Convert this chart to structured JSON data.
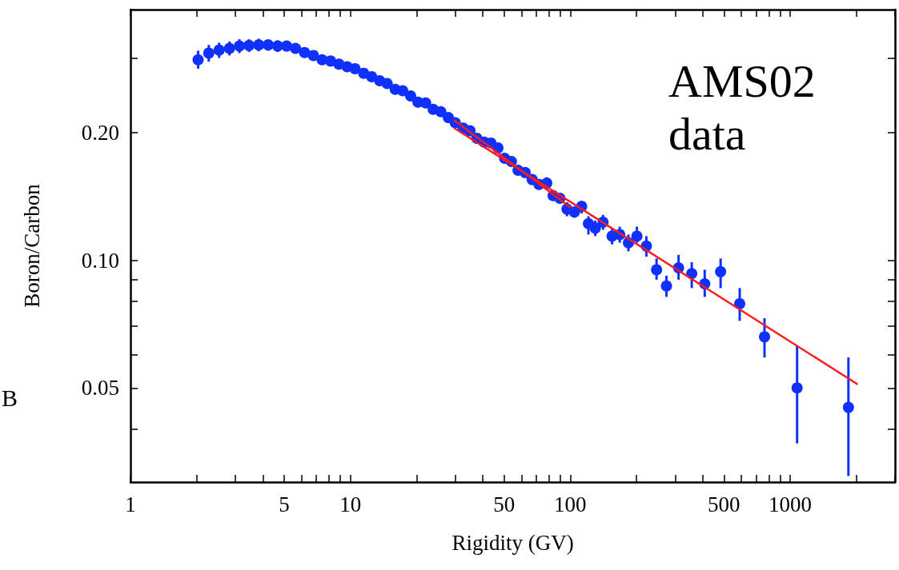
{
  "chart_data": {
    "type": "scatter",
    "xlabel": "Rigidity (GV)",
    "ylabel": "Boron/Carbon",
    "annotations": [
      "AMS02\ndata",
      "B"
    ],
    "log": "xy",
    "grid": false,
    "marker": "circle",
    "xlim": [
      1,
      3000
    ],
    "ylim": [
      0.03,
      0.39
    ],
    "xticks": [
      1,
      {
        "value": 2,
        "label": null
      },
      {
        "value": 3,
        "label": null
      },
      {
        "value": 4,
        "label": null
      },
      5,
      {
        "value": 6,
        "label": null
      },
      {
        "value": 7,
        "label": null
      },
      {
        "value": 8,
        "label": null
      },
      {
        "value": 9,
        "label": null
      },
      10,
      {
        "value": 20,
        "label": null
      },
      {
        "value": 30,
        "label": null
      },
      {
        "value": 40,
        "label": null
      },
      50,
      {
        "value": 60,
        "label": null
      },
      {
        "value": 70,
        "label": null
      },
      {
        "value": 80,
        "label": null
      },
      {
        "value": 90,
        "label": null
      },
      100,
      {
        "value": 200,
        "label": null
      },
      {
        "value": 300,
        "label": null
      },
      {
        "value": 400,
        "label": null
      },
      500,
      {
        "value": 600,
        "label": null
      },
      {
        "value": 700,
        "label": null
      },
      {
        "value": 800,
        "label": null
      },
      {
        "value": 900,
        "label": null
      },
      1000,
      {
        "value": 2000,
        "label": null
      },
      {
        "value": 3000,
        "label": null
      }
    ],
    "yticks": [
      {
        "value": 0.04,
        "label": null
      },
      0.05,
      {
        "value": 0.06,
        "label": null
      },
      {
        "value": 0.07,
        "label": null
      },
      {
        "value": 0.08,
        "label": null
      },
      {
        "value": 0.09,
        "label": null
      },
      {
        "value": 0.1,
        "label": "0.10"
      },
      {
        "value": 0.2,
        "label": "0.20"
      },
      {
        "value": 0.3,
        "label": null
      }
    ],
    "series": [
      {
        "color": "#1030ff",
        "x": [
          2.03,
          2.27,
          2.53,
          2.82,
          3.13,
          3.46,
          3.83,
          4.23,
          4.67,
          5.13,
          5.63,
          6.19,
          6.79,
          7.44,
          8.13,
          8.87,
          9.67,
          10.5,
          11.5,
          12.5,
          13.6,
          14.7,
          16.0,
          17.3,
          18.8,
          20.3,
          22.0,
          23.8,
          25.8,
          27.9,
          30.0,
          32.6,
          35.0,
          37.6,
          40.6,
          43.6,
          46.9,
          50.3,
          54.0,
          57.9,
          62.4,
          67.1,
          72.1,
          78.2,
          83.6,
          89.7,
          96.7,
          104.5,
          112.7,
          121,
          130,
          141,
          155,
          168,
          184,
          201,
          222,
          247,
          274,
          311,
          357,
          409,
          483,
          590,
          765,
          1076,
          1842
        ],
        "values": [
          0.297,
          0.308,
          0.313,
          0.316,
          0.32,
          0.321,
          0.322,
          0.322,
          0.32,
          0.32,
          0.316,
          0.309,
          0.304,
          0.297,
          0.295,
          0.29,
          0.286,
          0.283,
          0.276,
          0.271,
          0.265,
          0.261,
          0.253,
          0.251,
          0.244,
          0.236,
          0.235,
          0.227,
          0.224,
          0.217,
          0.211,
          0.205,
          0.202,
          0.194,
          0.19,
          0.189,
          0.184,
          0.174,
          0.171,
          0.163,
          0.161,
          0.155,
          0.151,
          0.152,
          0.142,
          0.14,
          0.132,
          0.13,
          0.134,
          0.122,
          0.119,
          0.123,
          0.114,
          0.115,
          0.11,
          0.114,
          0.108,
          0.095,
          0.087,
          0.096,
          0.093,
          0.088,
          0.094,
          0.079,
          0.066,
          0.05,
          0.045
        ],
        "errors": [
          [
            0.283,
            0.312
          ],
          0.014,
          0.013,
          0.012,
          0.012,
          0.011,
          0.011,
          0.01,
          0.01,
          0.009,
          0.008,
          0.007,
          0.006,
          null,
          null,
          null,
          null,
          null,
          null,
          null,
          null,
          null,
          null,
          null,
          null,
          null,
          null,
          null,
          null,
          null,
          null,
          null,
          null,
          null,
          null,
          null,
          null,
          null,
          null,
          null,
          null,
          null,
          null,
          0.005,
          null,
          null,
          0.005,
          [
            0.126,
            0.134
          ],
          [
            0.129,
            0.138
          ],
          [
            0.115,
            0.127
          ],
          [
            0.114,
            0.124
          ],
          [
            0.118,
            0.128
          ],
          [
            0.109,
            0.119
          ],
          [
            0.11,
            0.12
          ],
          [
            0.105,
            0.115
          ],
          [
            0.11,
            0.12
          ],
          [
            0.102,
            0.114
          ],
          [
            0.09,
            0.101
          ],
          [
            0.082,
            0.092
          ],
          [
            0.09,
            0.103
          ],
          [
            0.086,
            0.099
          ],
          [
            0.082,
            0.095
          ],
          [
            0.086,
            0.101
          ],
          [
            0.072,
            0.086
          ],
          [
            0.059,
            0.073
          ],
          [
            0.037,
            0.063
          ],
          [
            0.031,
            0.059
          ]
        ]
      },
      {
        "type": "line",
        "color": "#ff1a1a",
        "marker": "none",
        "x": [
          29.8,
          100
        ],
        "values": [
          0.2135,
          0.1334
        ]
      },
      {
        "type": "line",
        "color": "#ff1a1a",
        "marker": "none",
        "x": [
          29.8,
          2015
        ],
        "values": [
          0.2047,
          0.0511
        ]
      }
    ]
  }
}
